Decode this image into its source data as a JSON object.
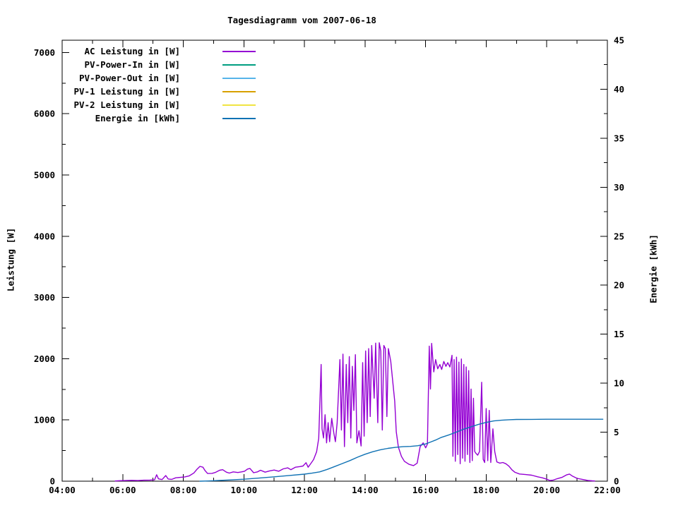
{
  "chart_data": {
    "type": "line",
    "title": "Tagesdiagramm vom 2007-06-18",
    "grid": false,
    "legend_position": "top-left",
    "x_axis": {
      "unit": "time of day (hours)",
      "min": 4,
      "max": 22,
      "minor_step": 1,
      "tick_values": [
        4,
        6,
        8,
        10,
        12,
        14,
        16,
        18,
        20,
        22
      ],
      "tick_labels": [
        "04:00",
        "06:00",
        "08:00",
        "10:00",
        "12:00",
        "14:00",
        "16:00",
        "18:00",
        "20:00",
        "22:00"
      ]
    },
    "y_left": {
      "label": "Leistung [W]",
      "min": 0,
      "max": 7200,
      "minor_step": 500,
      "tick_values": [
        0,
        1000,
        2000,
        3000,
        4000,
        5000,
        6000,
        7000
      ],
      "tick_labels": [
        "0",
        "1000",
        "2000",
        "3000",
        "4000",
        "5000",
        "6000",
        "7000"
      ]
    },
    "y_right": {
      "label": "Energie [kWh]",
      "min": 0,
      "max": 45,
      "minor_step": 2.5,
      "tick_values": [
        0,
        5,
        10,
        15,
        20,
        25,
        30,
        35,
        40,
        45
      ],
      "tick_labels": [
        "0",
        "5",
        "10",
        "15",
        "20",
        "25",
        "30",
        "35",
        "40",
        "45"
      ]
    },
    "legend": [
      {
        "label": "AC Leistung in [W]",
        "color": "#9400d3"
      },
      {
        "label": "PV-Power-In in [W]",
        "color": "#009e80"
      },
      {
        "label": "PV-Power-Out in [W]",
        "color": "#56b4e9"
      },
      {
        "label": "PV-1 Leistung in [W]",
        "color": "#d8a000"
      },
      {
        "label": "PV-2 Leistung in [W]",
        "color": "#f0e442"
      },
      {
        "label": "Energie in [kWh]",
        "color": "#1072b4"
      }
    ],
    "series": [
      {
        "name": "AC Leistung in [W]",
        "color": "#9400d3",
        "axis": "y_left",
        "points": [
          [
            5.75,
            4
          ],
          [
            5.9,
            8
          ],
          [
            6.1,
            10
          ],
          [
            6.3,
            14
          ],
          [
            6.5,
            10
          ],
          [
            6.7,
            16
          ],
          [
            6.9,
            18
          ],
          [
            7.05,
            22
          ],
          [
            7.12,
            105
          ],
          [
            7.18,
            38
          ],
          [
            7.3,
            26
          ],
          [
            7.42,
            92
          ],
          [
            7.5,
            36
          ],
          [
            7.62,
            30
          ],
          [
            7.75,
            55
          ],
          [
            7.9,
            62
          ],
          [
            8.05,
            70
          ],
          [
            8.2,
            88
          ],
          [
            8.35,
            135
          ],
          [
            8.45,
            195
          ],
          [
            8.55,
            242
          ],
          [
            8.65,
            228
          ],
          [
            8.72,
            172
          ],
          [
            8.8,
            125
          ],
          [
            8.95,
            128
          ],
          [
            9.05,
            142
          ],
          [
            9.2,
            178
          ],
          [
            9.3,
            188
          ],
          [
            9.42,
            148
          ],
          [
            9.52,
            132
          ],
          [
            9.65,
            152
          ],
          [
            9.8,
            142
          ],
          [
            9.92,
            152
          ],
          [
            10.02,
            162
          ],
          [
            10.12,
            198
          ],
          [
            10.2,
            208
          ],
          [
            10.32,
            138
          ],
          [
            10.45,
            152
          ],
          [
            10.55,
            178
          ],
          [
            10.7,
            148
          ],
          [
            10.85,
            168
          ],
          [
            11.0,
            182
          ],
          [
            11.15,
            162
          ],
          [
            11.3,
            202
          ],
          [
            11.45,
            218
          ],
          [
            11.55,
            188
          ],
          [
            11.7,
            228
          ],
          [
            11.85,
            238
          ],
          [
            11.95,
            248
          ],
          [
            12.05,
            302
          ],
          [
            12.12,
            228
          ],
          [
            12.2,
            282
          ],
          [
            12.3,
            352
          ],
          [
            12.4,
            480
          ],
          [
            12.47,
            700
          ],
          [
            12.55,
            1905
          ],
          [
            12.58,
            855
          ],
          [
            12.63,
            705
          ],
          [
            12.68,
            1085
          ],
          [
            12.73,
            625
          ],
          [
            12.78,
            955
          ],
          [
            12.83,
            645
          ],
          [
            12.9,
            1025
          ],
          [
            12.97,
            785
          ],
          [
            13.02,
            645
          ],
          [
            13.08,
            955
          ],
          [
            13.17,
            1985
          ],
          [
            13.22,
            835
          ],
          [
            13.27,
            2075
          ],
          [
            13.32,
            565
          ],
          [
            13.38,
            1905
          ],
          [
            13.43,
            955
          ],
          [
            13.48,
            2035
          ],
          [
            13.53,
            705
          ],
          [
            13.58,
            1875
          ],
          [
            13.63,
            1155
          ],
          [
            13.68,
            2065
          ],
          [
            13.73,
            625
          ],
          [
            13.8,
            825
          ],
          [
            13.87,
            575
          ],
          [
            13.92,
            1935
          ],
          [
            13.97,
            735
          ],
          [
            14.02,
            2125
          ],
          [
            14.07,
            955
          ],
          [
            14.12,
            2165
          ],
          [
            14.17,
            1055
          ],
          [
            14.22,
            2215
          ],
          [
            14.3,
            1355
          ],
          [
            14.35,
            2255
          ],
          [
            14.42,
            955
          ],
          [
            14.47,
            2260
          ],
          [
            14.52,
            2125
          ],
          [
            14.57,
            835
          ],
          [
            14.62,
            2215
          ],
          [
            14.67,
            2165
          ],
          [
            14.72,
            1055
          ],
          [
            14.77,
            2165
          ],
          [
            14.85,
            1955
          ],
          [
            14.92,
            1605
          ],
          [
            14.98,
            1305
          ],
          [
            15.03,
            805
          ],
          [
            15.1,
            555
          ],
          [
            15.2,
            405
          ],
          [
            15.3,
            325
          ],
          [
            15.45,
            275
          ],
          [
            15.6,
            255
          ],
          [
            15.72,
            295
          ],
          [
            15.82,
            565
          ],
          [
            15.92,
            625
          ],
          [
            16.0,
            545
          ],
          [
            16.06,
            605
          ],
          [
            16.12,
            2205
          ],
          [
            16.16,
            1505
          ],
          [
            16.2,
            2250
          ],
          [
            16.27,
            1785
          ],
          [
            16.33,
            1985
          ],
          [
            16.4,
            1835
          ],
          [
            16.47,
            1905
          ],
          [
            16.53,
            1825
          ],
          [
            16.6,
            1955
          ],
          [
            16.67,
            1875
          ],
          [
            16.73,
            1935
          ],
          [
            16.8,
            1865
          ],
          [
            16.87,
            2055
          ],
          [
            16.9,
            405
          ],
          [
            16.94,
            1985
          ],
          [
            16.98,
            325
          ],
          [
            17.02,
            2025
          ],
          [
            17.06,
            435
          ],
          [
            17.1,
            1945
          ],
          [
            17.14,
            285
          ],
          [
            17.18,
            1995
          ],
          [
            17.22,
            375
          ],
          [
            17.26,
            1905
          ],
          [
            17.3,
            325
          ],
          [
            17.34,
            1865
          ],
          [
            17.38,
            435
          ],
          [
            17.42,
            1805
          ],
          [
            17.46,
            305
          ],
          [
            17.5,
            1505
          ],
          [
            17.54,
            335
          ],
          [
            17.58,
            1355
          ],
          [
            17.62,
            485
          ],
          [
            17.66,
            455
          ],
          [
            17.72,
            425
          ],
          [
            17.78,
            485
          ],
          [
            17.85,
            1615
          ],
          [
            17.9,
            355
          ],
          [
            17.95,
            305
          ],
          [
            18.0,
            1185
          ],
          [
            18.05,
            335
          ],
          [
            18.1,
            1155
          ],
          [
            18.15,
            305
          ],
          [
            18.22,
            855
          ],
          [
            18.28,
            485
          ],
          [
            18.35,
            315
          ],
          [
            18.45,
            295
          ],
          [
            18.55,
            305
          ],
          [
            18.65,
            285
          ],
          [
            18.75,
            245
          ],
          [
            18.85,
            185
          ],
          [
            18.95,
            145
          ],
          [
            19.1,
            118
          ],
          [
            19.3,
            108
          ],
          [
            19.5,
            98
          ],
          [
            19.7,
            72
          ],
          [
            19.85,
            55
          ],
          [
            20.0,
            32
          ],
          [
            20.1,
            12
          ],
          [
            20.2,
            16
          ],
          [
            20.35,
            42
          ],
          [
            20.5,
            62
          ],
          [
            20.65,
            102
          ],
          [
            20.75,
            116
          ],
          [
            20.85,
            82
          ],
          [
            21.0,
            46
          ],
          [
            21.2,
            26
          ],
          [
            21.35,
            13
          ],
          [
            21.5,
            6
          ],
          [
            21.58,
            3
          ]
        ]
      },
      {
        "name": "PV-Power-In in [W]",
        "color": "#009e80",
        "axis": "y_left",
        "points": []
      },
      {
        "name": "PV-Power-Out in [W]",
        "color": "#56b4e9",
        "axis": "y_left",
        "points": []
      },
      {
        "name": "PV-1 Leistung in [W]",
        "color": "#d8a000",
        "axis": "y_left",
        "points": []
      },
      {
        "name": "PV-2 Leistung in [W]",
        "color": "#f0e442",
        "axis": "y_left",
        "points": []
      },
      {
        "name": "Energie in [kWh]",
        "color": "#1072b4",
        "axis": "y_right",
        "points": [
          [
            8.55,
            0
          ],
          [
            8.8,
            0.02
          ],
          [
            9.0,
            0.05
          ],
          [
            9.5,
            0.12
          ],
          [
            10.0,
            0.2
          ],
          [
            10.5,
            0.32
          ],
          [
            11.0,
            0.45
          ],
          [
            11.5,
            0.58
          ],
          [
            12.0,
            0.72
          ],
          [
            12.25,
            0.82
          ],
          [
            12.5,
            0.95
          ],
          [
            12.75,
            1.2
          ],
          [
            13.0,
            1.5
          ],
          [
            13.25,
            1.8
          ],
          [
            13.5,
            2.1
          ],
          [
            13.75,
            2.45
          ],
          [
            14.0,
            2.75
          ],
          [
            14.25,
            3.0
          ],
          [
            14.5,
            3.2
          ],
          [
            14.75,
            3.35
          ],
          [
            15.0,
            3.45
          ],
          [
            15.25,
            3.52
          ],
          [
            15.5,
            3.55
          ],
          [
            15.75,
            3.62
          ],
          [
            16.0,
            3.8
          ],
          [
            16.17,
            4.0
          ],
          [
            16.33,
            4.2
          ],
          [
            16.5,
            4.45
          ],
          [
            16.75,
            4.7
          ],
          [
            17.0,
            5.0
          ],
          [
            17.25,
            5.3
          ],
          [
            17.5,
            5.55
          ],
          [
            17.75,
            5.8
          ],
          [
            18.0,
            6.0
          ],
          [
            18.25,
            6.15
          ],
          [
            18.5,
            6.22
          ],
          [
            18.75,
            6.27
          ],
          [
            19.0,
            6.3
          ],
          [
            19.5,
            6.31
          ],
          [
            20.0,
            6.32
          ],
          [
            20.5,
            6.32
          ],
          [
            21.0,
            6.32
          ],
          [
            21.5,
            6.32
          ],
          [
            21.85,
            6.32
          ]
        ]
      }
    ]
  }
}
